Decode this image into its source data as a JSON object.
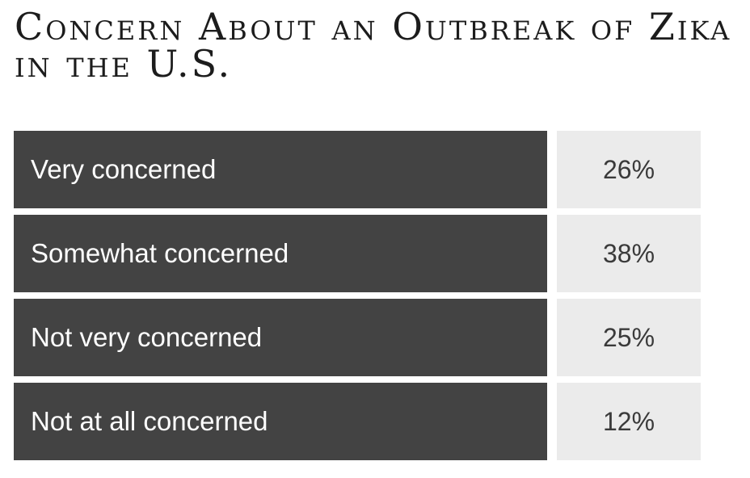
{
  "chart_data": {
    "type": "table",
    "title": "Concern About an Outbreak of Zika in the U.S.",
    "rows": [
      {
        "label": "Very concerned",
        "value": 26,
        "display": "26%"
      },
      {
        "label": "Somewhat concerned",
        "value": 38,
        "display": "38%"
      },
      {
        "label": "Not very concerned",
        "value": 25,
        "display": "25%"
      },
      {
        "label": "Not at all concerned",
        "value": 12,
        "display": "12%"
      }
    ]
  },
  "colors": {
    "label_bg": "#434343",
    "value_bg": "#ebebeb",
    "label_text": "#ffffff",
    "value_text": "#3a3a3a"
  }
}
